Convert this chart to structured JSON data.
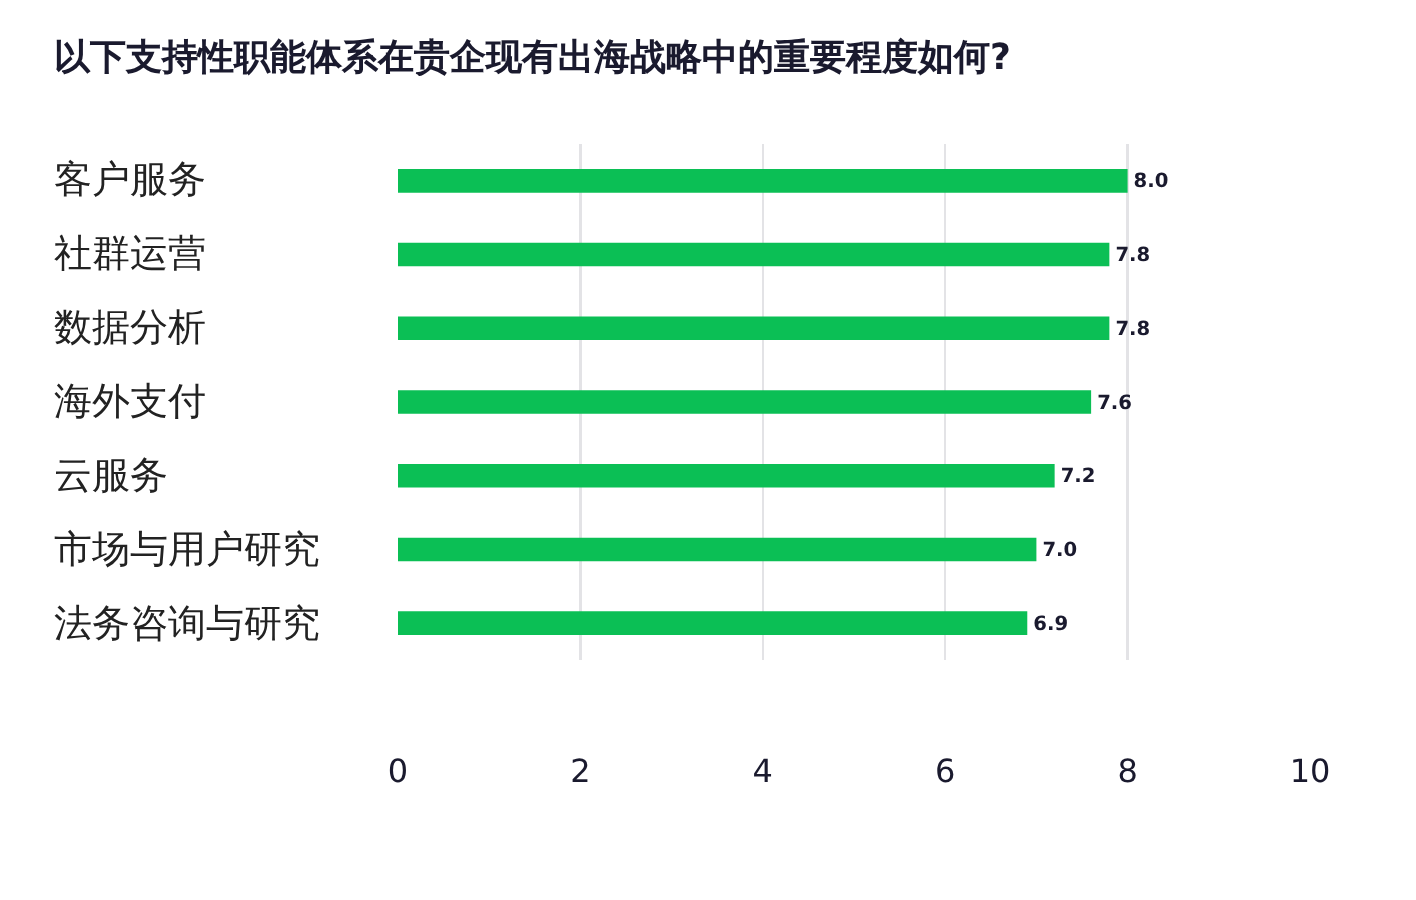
{
  "chart_data": {
    "type": "bar",
    "orientation": "horizontal",
    "title": "以下支持性职能体系在贵企现有出海战略中的重要程度如何?",
    "categories": [
      "客户服务",
      "社群运营",
      "数据分析",
      "海外支付",
      "云服务",
      "市场与用户研究",
      "法务咨询与研究"
    ],
    "values": [
      8.0,
      7.8,
      7.8,
      7.6,
      7.2,
      7.0,
      6.9
    ],
    "value_labels": [
      "8.0",
      "7.8",
      "7.8",
      "7.6",
      "7.2",
      "7.0",
      "6.9"
    ],
    "color": "#0bbf55",
    "xlim": [
      0,
      10
    ],
    "xticks": [
      0,
      2,
      4,
      6,
      8,
      10
    ],
    "grid": "x"
  }
}
